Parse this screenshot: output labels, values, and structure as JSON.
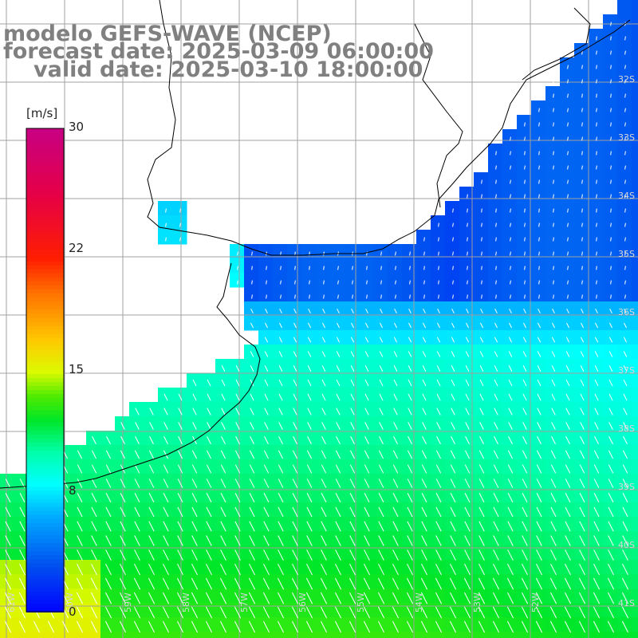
{
  "title": {
    "model": "modelo GEFS-WAVE (NCEP)",
    "forecast": "forecast date: 2025-03-09 06:00:00",
    "valid": "valid date: 2025-03-10 18:00:00"
  },
  "colorbar": {
    "units": "[m/s]",
    "ticks": [
      "30",
      "22",
      "15",
      "8",
      "0"
    ],
    "colors": [
      "#0000ff",
      "#0050f0",
      "#00a0ff",
      "#00e0ff",
      "#00ffb0",
      "#00f050",
      "#00d800",
      "#60e800",
      "#c0f000",
      "#ffff00",
      "#ffc000",
      "#ff8000",
      "#ff4000",
      "#ff0000",
      "#e8004a",
      "#c8007c"
    ]
  },
  "grid_labels": {
    "lat": [
      "32S",
      "33S",
      "34S",
      "35S",
      "36S",
      "37S",
      "38S",
      "39S",
      "40S",
      "41S"
    ],
    "lon": [
      "61W",
      "60W",
      "59W",
      "58W",
      "57W",
      "56W",
      "55W",
      "54W",
      "53W",
      "52W"
    ]
  },
  "colors": {
    "land": "#ffffff",
    "grid": "#a0a0a0",
    "coast": "#000000",
    "title": "#808080"
  }
}
